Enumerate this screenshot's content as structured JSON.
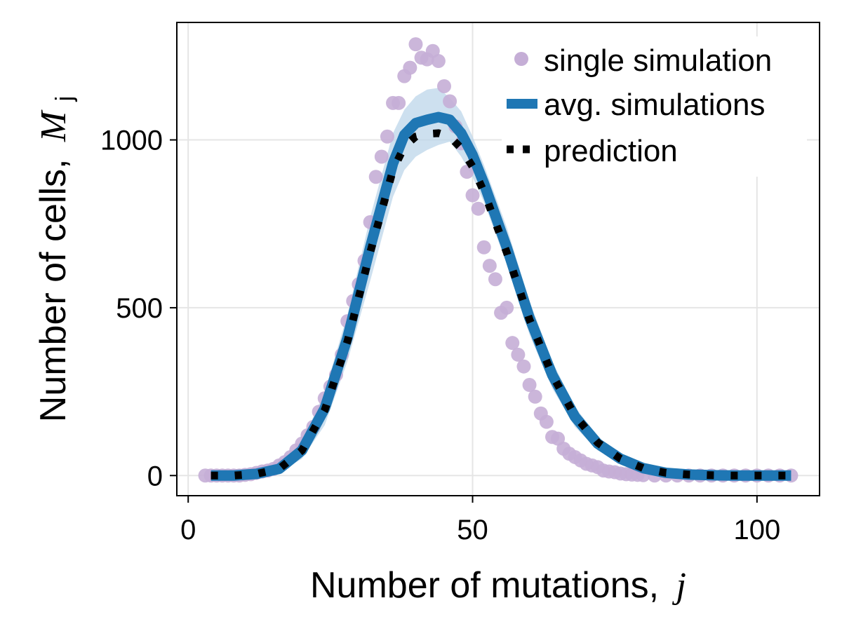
{
  "chart_data": {
    "type": "line",
    "xlabel": "Number of mutations,",
    "xlabel_var": "j",
    "ylabel": "Number of cells,",
    "ylabel_var": "M",
    "ylabel_var_sub": "j",
    "xlim": [
      -2,
      111
    ],
    "ylim": [
      -60,
      1350
    ],
    "xticks": [
      0,
      50,
      100
    ],
    "yticks": [
      0,
      500,
      1000
    ],
    "grid": true,
    "legend_position": "top-right",
    "colors": {
      "single": "#c5aed6",
      "avg": "#1f77b4",
      "band": "#bcd6ea",
      "prediction": "#000000",
      "grid": "#e5e5e5"
    },
    "series": [
      {
        "name": "single simulation",
        "kind": "scatter",
        "points": [
          [
            3,
            0
          ],
          [
            4,
            0
          ],
          [
            5,
            0
          ],
          [
            6,
            0
          ],
          [
            7,
            0
          ],
          [
            8,
            0
          ],
          [
            9,
            0
          ],
          [
            10,
            2
          ],
          [
            11,
            4
          ],
          [
            12,
            8
          ],
          [
            13,
            12
          ],
          [
            14,
            15
          ],
          [
            15,
            20
          ],
          [
            16,
            30
          ],
          [
            17,
            40
          ],
          [
            18,
            55
          ],
          [
            19,
            75
          ],
          [
            20,
            95
          ],
          [
            21,
            120
          ],
          [
            22,
            145
          ],
          [
            23,
            190
          ],
          [
            24,
            230
          ],
          [
            25,
            265
          ],
          [
            26,
            300
          ],
          [
            27,
            360
          ],
          [
            28,
            460
          ],
          [
            29,
            520
          ],
          [
            30,
            570
          ],
          [
            31,
            640
          ],
          [
            32,
            755
          ],
          [
            33,
            890
          ],
          [
            34,
            950
          ],
          [
            35,
            1010
          ],
          [
            36,
            1110
          ],
          [
            37,
            1110
          ],
          [
            38,
            1190
          ],
          [
            39,
            1215
          ],
          [
            40,
            1285
          ],
          [
            41,
            1245
          ],
          [
            42,
            1240
          ],
          [
            43,
            1265
          ],
          [
            44,
            1235
          ],
          [
            45,
            1160
          ],
          [
            46,
            1115
          ],
          [
            47,
            1040
          ],
          [
            48,
            990
          ],
          [
            49,
            905
          ],
          [
            50,
            835
          ],
          [
            51,
            795
          ],
          [
            52,
            680
          ],
          [
            53,
            625
          ],
          [
            54,
            585
          ],
          [
            55,
            485
          ],
          [
            56,
            500
          ],
          [
            57,
            395
          ],
          [
            58,
            360
          ],
          [
            59,
            325
          ],
          [
            60,
            270
          ],
          [
            61,
            235
          ],
          [
            62,
            185
          ],
          [
            63,
            160
          ],
          [
            64,
            115
          ],
          [
            65,
            110
          ],
          [
            66,
            80
          ],
          [
            67,
            65
          ],
          [
            68,
            55
          ],
          [
            69,
            45
          ],
          [
            70,
            35
          ],
          [
            71,
            30
          ],
          [
            72,
            25
          ],
          [
            73,
            15
          ],
          [
            74,
            12
          ],
          [
            75,
            10
          ],
          [
            76,
            6
          ],
          [
            77,
            4
          ],
          [
            78,
            3
          ],
          [
            79,
            2
          ],
          [
            80,
            1
          ],
          [
            82,
            0
          ],
          [
            84,
            0
          ],
          [
            86,
            0
          ],
          [
            88,
            0
          ],
          [
            90,
            0
          ],
          [
            92,
            0
          ],
          [
            94,
            0
          ],
          [
            96,
            0
          ],
          [
            98,
            0
          ],
          [
            100,
            0
          ],
          [
            102,
            0
          ],
          [
            104,
            0
          ],
          [
            106,
            0
          ]
        ]
      },
      {
        "name": "avg. simulations",
        "kind": "line",
        "x": [
          4,
          8,
          12,
          16,
          20,
          24,
          28,
          32,
          36,
          38,
          40,
          42,
          44,
          46,
          48,
          50,
          52,
          56,
          60,
          64,
          68,
          72,
          76,
          80,
          84,
          88,
          92,
          96,
          100,
          106
        ],
        "y": [
          0,
          0,
          5,
          20,
          75,
          200,
          410,
          680,
          930,
          1015,
          1050,
          1060,
          1068,
          1060,
          1020,
          955,
          870,
          680,
          470,
          300,
          175,
          95,
          50,
          22,
          8,
          3,
          1,
          0,
          0,
          0
        ],
        "band_low": [
          0,
          0,
          3,
          10,
          50,
          150,
          340,
          580,
          830,
          910,
          950,
          970,
          985,
          995,
          950,
          890,
          815,
          630,
          420,
          260,
          145,
          75,
          38,
          15,
          5,
          2,
          0,
          0,
          0,
          0
        ],
        "band_high": [
          0,
          0,
          8,
          30,
          100,
          250,
          480,
          770,
          1020,
          1090,
          1130,
          1150,
          1155,
          1125,
          1085,
          1010,
          925,
          740,
          520,
          340,
          205,
          115,
          62,
          28,
          12,
          4,
          1,
          0,
          0,
          0
        ]
      },
      {
        "name": "prediction",
        "kind": "line",
        "x": [
          4,
          8,
          12,
          16,
          20,
          24,
          28,
          32,
          36,
          38,
          40,
          42,
          44,
          46,
          48,
          50,
          52,
          56,
          60,
          64,
          68,
          72,
          76,
          80,
          84,
          88,
          92,
          96,
          100,
          106
        ],
        "y": [
          0,
          0,
          5,
          20,
          75,
          195,
          400,
          665,
          910,
          980,
          1010,
          1018,
          1020,
          1010,
          975,
          920,
          845,
          665,
          465,
          300,
          178,
          98,
          50,
          22,
          8,
          3,
          1,
          0,
          0,
          0
        ]
      }
    ]
  }
}
